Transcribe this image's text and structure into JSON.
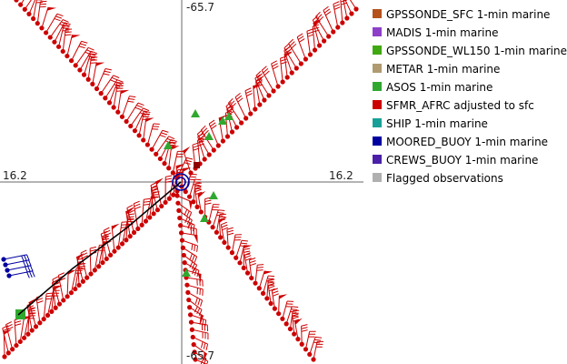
{
  "axes": {
    "top": "-65.7",
    "bottom": "-65.7",
    "left": "16.2",
    "right": "16.2"
  },
  "legend": [
    {
      "label": "GPSSONDE_SFC 1-min marine",
      "color": "#b5511a"
    },
    {
      "label": "MADIS 1-min marine",
      "color": "#8e3fc9"
    },
    {
      "label": "GPSSONDE_WL150 1-min marine",
      "color": "#40a810"
    },
    {
      "label": "METAR 1-min marine",
      "color": "#b09a70"
    },
    {
      "label": "ASOS 1-min marine",
      "color": "#30a830"
    },
    {
      "label": "SFMR_AFRC adjusted to sfc",
      "color": "#cc0000"
    },
    {
      "label": "SHIP 1-min marine",
      "color": "#18a098"
    },
    {
      "label": "MOORED_BUOY 1-min marine",
      "color": "#0000a0"
    },
    {
      "label": "CREWS_BUOY 1-min marine",
      "color": "#4a20a8"
    },
    {
      "label": "Flagged observations",
      "color": "#b0b0b0"
    }
  ]
}
